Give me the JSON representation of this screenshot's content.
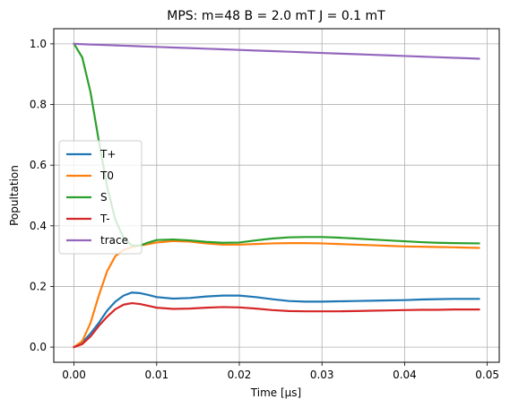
{
  "chart_data": {
    "type": "line",
    "title": "MPS: m=48 B = 2.0 mT J = 0.1 mT",
    "xlabel": "Time [μs]",
    "ylabel": "Popultation",
    "xlim": [
      -0.00245,
      0.05145
    ],
    "ylim": [
      -0.05,
      1.05
    ],
    "xticks": [
      0.0,
      0.01,
      0.02,
      0.03,
      0.04,
      0.05
    ],
    "xtick_labels": [
      "0.00",
      "0.01",
      "0.02",
      "0.03",
      "0.04",
      "0.05"
    ],
    "yticks": [
      0.0,
      0.2,
      0.4,
      0.6,
      0.8,
      1.0
    ],
    "ytick_labels": [
      "0.0",
      "0.2",
      "0.4",
      "0.6",
      "0.8",
      "1.0"
    ],
    "grid": true,
    "legend_position": "center-left",
    "x": [
      0.0,
      0.001,
      0.002,
      0.003,
      0.004,
      0.005,
      0.006,
      0.007,
      0.008,
      0.009,
      0.01,
      0.012,
      0.014,
      0.016,
      0.018,
      0.02,
      0.022,
      0.024,
      0.026,
      0.028,
      0.03,
      0.032,
      0.034,
      0.036,
      0.038,
      0.04,
      0.042,
      0.044,
      0.046,
      0.049
    ],
    "series": [
      {
        "name": "T+",
        "color": "#1f77b4",
        "values": [
          0.0,
          0.015,
          0.045,
          0.08,
          0.12,
          0.15,
          0.17,
          0.18,
          0.178,
          0.172,
          0.165,
          0.16,
          0.162,
          0.167,
          0.17,
          0.17,
          0.165,
          0.158,
          0.152,
          0.15,
          0.15,
          0.151,
          0.152,
          0.153,
          0.154,
          0.155,
          0.157,
          0.158,
          0.159,
          0.159
        ]
      },
      {
        "name": "T0",
        "color": "#ff7f0e",
        "values": [
          0.0,
          0.02,
          0.08,
          0.17,
          0.25,
          0.3,
          0.32,
          0.33,
          0.335,
          0.34,
          0.345,
          0.35,
          0.348,
          0.342,
          0.338,
          0.338,
          0.34,
          0.342,
          0.343,
          0.343,
          0.342,
          0.34,
          0.338,
          0.336,
          0.334,
          0.332,
          0.331,
          0.33,
          0.329,
          0.327
        ]
      },
      {
        "name": "S",
        "color": "#2ca02c",
        "values": [
          1.0,
          0.955,
          0.84,
          0.68,
          0.53,
          0.42,
          0.36,
          0.335,
          0.335,
          0.345,
          0.353,
          0.355,
          0.352,
          0.347,
          0.344,
          0.345,
          0.352,
          0.358,
          0.362,
          0.363,
          0.363,
          0.361,
          0.358,
          0.355,
          0.352,
          0.349,
          0.346,
          0.344,
          0.343,
          0.342
        ]
      },
      {
        "name": "T-",
        "color": "#d62728",
        "values": [
          0.0,
          0.01,
          0.035,
          0.07,
          0.1,
          0.125,
          0.14,
          0.145,
          0.142,
          0.136,
          0.13,
          0.126,
          0.127,
          0.13,
          0.132,
          0.131,
          0.127,
          0.122,
          0.119,
          0.118,
          0.118,
          0.118,
          0.119,
          0.12,
          0.121,
          0.122,
          0.123,
          0.123,
          0.124,
          0.124
        ]
      },
      {
        "name": "trace",
        "color": "#9467bd",
        "values": [
          1.0,
          0.999,
          0.998,
          0.997,
          0.996,
          0.995,
          0.994,
          0.993,
          0.992,
          0.991,
          0.99,
          0.988,
          0.986,
          0.984,
          0.982,
          0.98,
          0.978,
          0.976,
          0.974,
          0.972,
          0.97,
          0.968,
          0.966,
          0.964,
          0.962,
          0.96,
          0.958,
          0.956,
          0.954,
          0.951
        ]
      }
    ]
  }
}
